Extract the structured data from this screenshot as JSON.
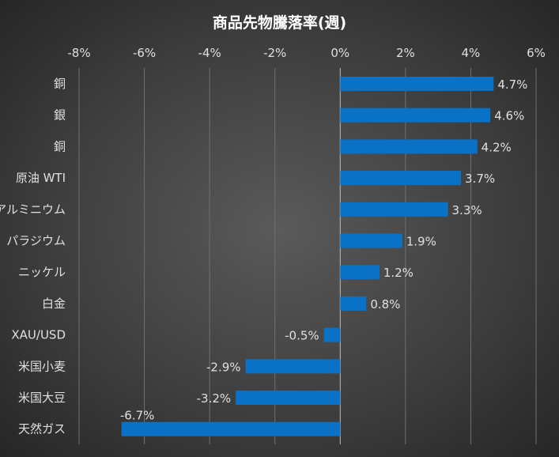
{
  "chart_data": {
    "type": "bar",
    "orientation": "horizontal",
    "title": "商品先物騰落率(週)",
    "xlabel": "",
    "ylabel": "",
    "xlim": [
      -8,
      6
    ],
    "xticks": [
      -8,
      -6,
      -4,
      -2,
      0,
      2,
      4,
      6
    ],
    "tick_suffix": "%",
    "axis_position": "top",
    "grid": true,
    "bar_color": "#0a72c6",
    "categories": [
      "銅",
      "銀",
      "銅",
      "原油 WTI",
      "アルミニウム",
      "パラジウム",
      "ニッケル",
      "白金",
      "XAU/USD",
      "米国小麦",
      "米国大豆",
      "天然ガス"
    ],
    "values": [
      4.7,
      4.6,
      4.2,
      3.7,
      3.3,
      1.9,
      1.2,
      0.8,
      -0.5,
      -2.9,
      -3.2,
      -6.7
    ],
    "value_labels": [
      "4.7%",
      "4.6%",
      "4.2%",
      "3.7%",
      "3.3%",
      "1.9%",
      "1.2%",
      "0.8%",
      "-0.5%",
      "-2.9%",
      "-3.2%",
      "-6.7%"
    ]
  }
}
